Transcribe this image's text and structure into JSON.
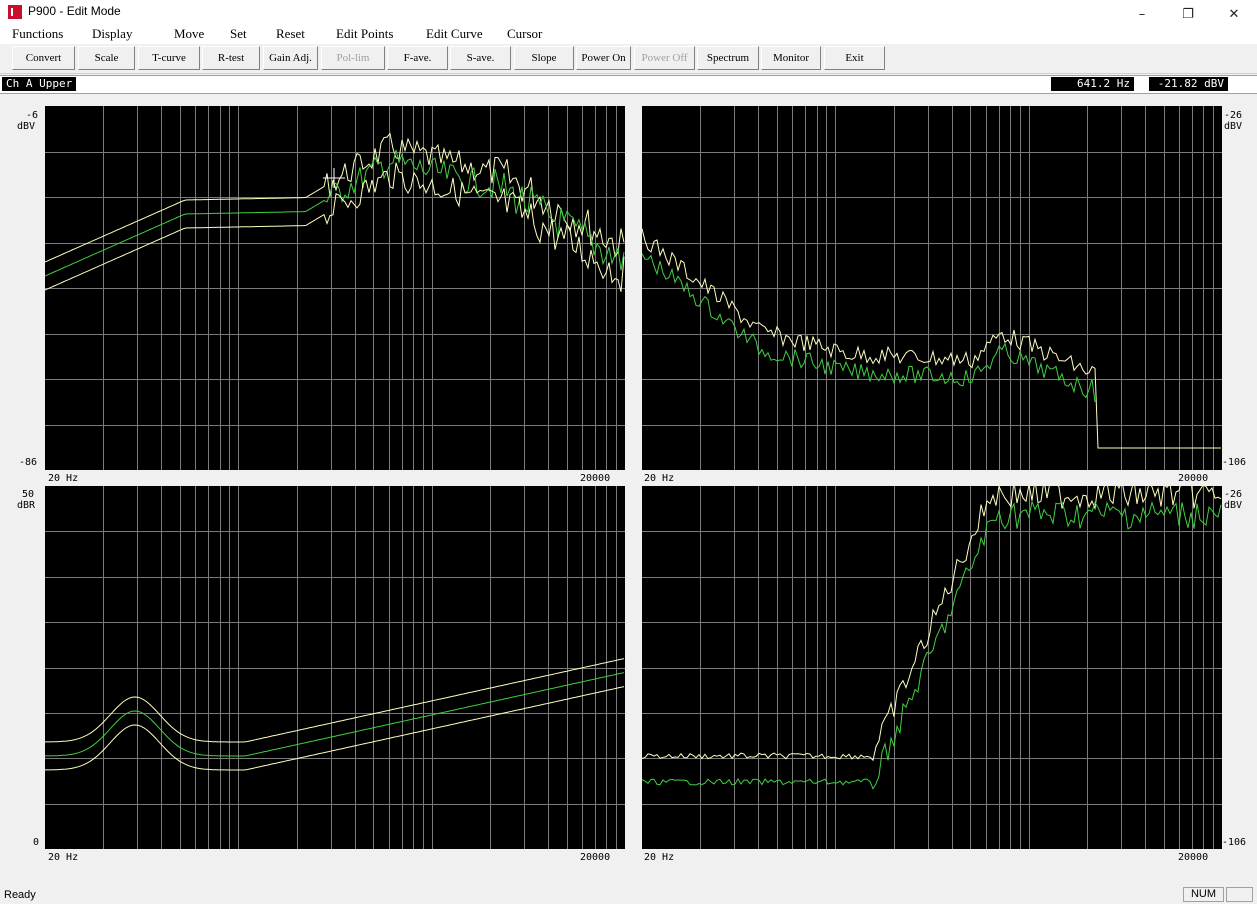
{
  "window": {
    "title": "P900 - Edit Mode",
    "minimize": "–",
    "restore": "❐",
    "close": "✕",
    "icon": "app-k-icon"
  },
  "menu": [
    "Functions",
    "Display",
    "Move",
    "Set",
    "Reset",
    "Edit Points",
    "Edit Curve",
    "Cursor"
  ],
  "toolbar": [
    {
      "label": "Convert",
      "enabled": true
    },
    {
      "label": "Scale",
      "enabled": true
    },
    {
      "label": "T-curve",
      "enabled": true
    },
    {
      "label": "R-test",
      "enabled": true
    },
    {
      "label": "Gain Adj.",
      "enabled": true
    },
    {
      "label": "Pol-lim",
      "enabled": false
    },
    {
      "label": "F-ave.",
      "enabled": true
    },
    {
      "label": "S-ave.",
      "enabled": true
    },
    {
      "label": "Slope",
      "enabled": true
    },
    {
      "label": "Power On",
      "enabled": true
    },
    {
      "label": "Power Off",
      "enabled": false
    },
    {
      "label": "Spectrum",
      "enabled": true
    },
    {
      "label": "Monitor",
      "enabled": true
    },
    {
      "label": "Exit",
      "enabled": true
    }
  ],
  "info": {
    "channel": "Ch A Upper",
    "frequency": "641.2 Hz",
    "level": "-21.82 dBV"
  },
  "plots": {
    "top_left": {
      "y_top": "-6",
      "unit": "dBV",
      "y_bottom": "-86",
      "x_start": "20 Hz",
      "x_end": "20000"
    },
    "top_right": {
      "y_top": "-26",
      "unit": "dBV",
      "y_bottom": "-106",
      "x_start": "20 Hz",
      "x_end": "20000"
    },
    "bottom_left": {
      "y_top": "50",
      "unit": "dBR",
      "y_bottom": "0",
      "x_start": "20 Hz",
      "x_end": "20000"
    },
    "bottom_right": {
      "y_top": "-26",
      "unit": "dBV",
      "y_bottom": "-106",
      "x_start": "20 Hz",
      "x_end": "20000"
    }
  },
  "colors": {
    "plot_bg": "#000000",
    "grid": "#808080",
    "limit_curve": "#ffffc0",
    "measured_curve": "#40d040"
  },
  "status": {
    "text": "Ready",
    "num": "NUM"
  }
}
